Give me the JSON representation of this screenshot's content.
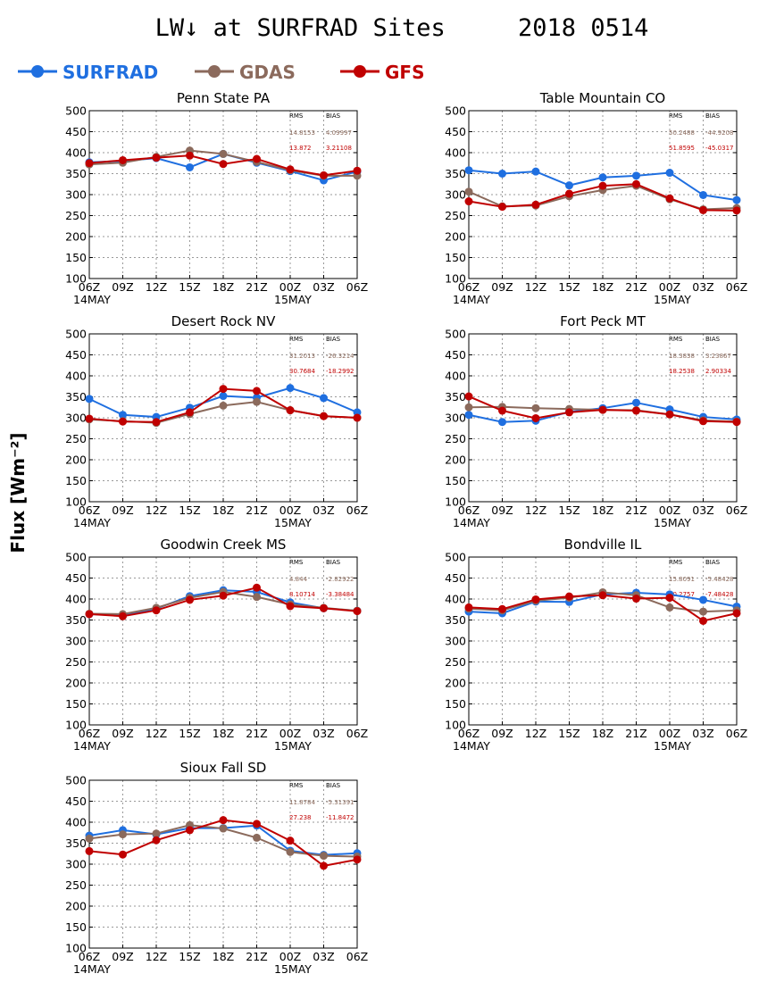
{
  "title": "LW↓ at SURFRAD Sites     2018 0514",
  "ylabel": "Flux [Wm⁻²]",
  "legend": [
    {
      "name": "SURFRAD",
      "color": "#1f6fe0"
    },
    {
      "name": "GDAS",
      "color": "#8b6a5c"
    },
    {
      "name": "GFS",
      "color": "#c00000"
    }
  ],
  "stats_headers": [
    "RMS",
    "BIAS"
  ],
  "chart_data": [
    {
      "type": "line",
      "title": "Penn State PA",
      "categories": [
        "06Z",
        "09Z",
        "12Z",
        "15Z",
        "18Z",
        "21Z",
        "00Z",
        "03Z",
        "06Z"
      ],
      "date_labels": [
        {
          "at": "06Z",
          "text": "14MAY"
        },
        {
          "at": "00Z",
          "text": "15MAY"
        }
      ],
      "ylim": [
        100,
        500
      ],
      "yticks": [
        100,
        150,
        200,
        250,
        300,
        350,
        400,
        450,
        500
      ],
      "grid": true,
      "series": [
        {
          "name": "SURFRAD",
          "values": [
            377,
            380,
            387,
            365,
            397,
            376,
            356,
            334,
            355
          ]
        },
        {
          "name": "GDAS",
          "values": [
            372,
            376,
            390,
            405,
            397,
            378,
            358,
            345,
            345
          ]
        },
        {
          "name": "GFS",
          "values": [
            375,
            382,
            388,
            393,
            373,
            385,
            360,
            346,
            357
          ]
        }
      ],
      "stats": {
        "GDAS": {
          "rms": "14.8153",
          "bias": "4.09997"
        },
        "GFS": {
          "rms": "13.872",
          "bias": "3.21108"
        }
      }
    },
    {
      "type": "line",
      "title": "Table Mountain CO",
      "categories": [
        "06Z",
        "09Z",
        "12Z",
        "15Z",
        "18Z",
        "21Z",
        "00Z",
        "03Z",
        "06Z"
      ],
      "date_labels": [
        {
          "at": "06Z",
          "text": "14MAY"
        },
        {
          "at": "00Z",
          "text": "15MAY"
        }
      ],
      "ylim": [
        100,
        500
      ],
      "yticks": [
        100,
        150,
        200,
        250,
        300,
        350,
        400,
        450,
        500
      ],
      "grid": true,
      "series": [
        {
          "name": "SURFRAD",
          "values": [
            358,
            350,
            355,
            322,
            341,
            345,
            352,
            299,
            287
          ]
        },
        {
          "name": "GDAS",
          "values": [
            307,
            272,
            274,
            296,
            311,
            321,
            289,
            265,
            268
          ]
        },
        {
          "name": "GFS",
          "values": [
            284,
            271,
            276,
            302,
            321,
            325,
            291,
            263,
            262
          ]
        }
      ],
      "stats": {
        "GDAS": {
          "rms": "50.2488",
          "bias": "-44.9208"
        },
        "GFS": {
          "rms": "51.8595",
          "bias": "-45.0317"
        }
      }
    },
    {
      "type": "line",
      "title": "Desert Rock NV",
      "categories": [
        "06Z",
        "09Z",
        "12Z",
        "15Z",
        "18Z",
        "21Z",
        "00Z",
        "03Z",
        "06Z"
      ],
      "date_labels": [
        {
          "at": "06Z",
          "text": "14MAY"
        },
        {
          "at": "00Z",
          "text": "15MAY"
        }
      ],
      "ylim": [
        100,
        500
      ],
      "yticks": [
        100,
        150,
        200,
        250,
        300,
        350,
        400,
        450,
        500
      ],
      "grid": true,
      "series": [
        {
          "name": "SURFRAD",
          "values": [
            345,
            307,
            302,
            324,
            352,
            348,
            371,
            347,
            313
          ]
        },
        {
          "name": "GDAS",
          "values": [
            296,
            292,
            288,
            309,
            329,
            338,
            318,
            304,
            300
          ]
        },
        {
          "name": "GFS",
          "values": [
            298,
            291,
            290,
            313,
            369,
            364,
            318,
            304,
            300
          ]
        }
      ],
      "stats": {
        "GDAS": {
          "rms": "31.2013",
          "bias": "-26.3214"
        },
        "GFS": {
          "rms": "30.7684",
          "bias": "-18.2992"
        }
      }
    },
    {
      "type": "line",
      "title": "Fort Peck MT",
      "categories": [
        "06Z",
        "09Z",
        "12Z",
        "15Z",
        "18Z",
        "21Z",
        "00Z",
        "03Z",
        "06Z"
      ],
      "date_labels": [
        {
          "at": "06Z",
          "text": "14MAY"
        },
        {
          "at": "00Z",
          "text": "15MAY"
        }
      ],
      "ylim": [
        100,
        500
      ],
      "yticks": [
        100,
        150,
        200,
        250,
        300,
        350,
        400,
        450,
        500
      ],
      "grid": true,
      "series": [
        {
          "name": "SURFRAD",
          "values": [
            307,
            290,
            293,
            314,
            323,
            336,
            320,
            302,
            296
          ]
        },
        {
          "name": "GDAS",
          "values": [
            325,
            326,
            323,
            321,
            319,
            318,
            308,
            294,
            291
          ]
        },
        {
          "name": "GFS",
          "values": [
            351,
            317,
            299,
            313,
            319,
            317,
            308,
            292,
            290
          ]
        }
      ],
      "stats": {
        "GDAS": {
          "rms": "18.3838",
          "bias": "3.23867"
        },
        "GFS": {
          "rms": "18.2538",
          "bias": "2.90334"
        }
      }
    },
    {
      "type": "line",
      "title": "Goodwin Creek MS",
      "categories": [
        "06Z",
        "09Z",
        "12Z",
        "15Z",
        "18Z",
        "21Z",
        "00Z",
        "03Z",
        "06Z"
      ],
      "date_labels": [
        {
          "at": "06Z",
          "text": "14MAY"
        },
        {
          "at": "00Z",
          "text": "15MAY"
        }
      ],
      "ylim": [
        100,
        500
      ],
      "yticks": [
        100,
        150,
        200,
        250,
        300,
        350,
        400,
        450,
        500
      ],
      "grid": true,
      "series": [
        {
          "name": "SURFRAD",
          "values": [
            364,
            361,
            377,
            407,
            421,
            417,
            392,
            378,
            372
          ]
        },
        {
          "name": "GDAS",
          "values": [
            365,
            364,
            379,
            403,
            417,
            405,
            387,
            379,
            372
          ]
        },
        {
          "name": "GFS",
          "values": [
            364,
            359,
            373,
            398,
            408,
            427,
            383,
            378,
            371
          ]
        }
      ],
      "stats": {
        "GDAS": {
          "rms": "4.844",
          "bias": "-2.82922"
        },
        "GFS": {
          "rms": "8.10714",
          "bias": "-3.38484"
        }
      }
    },
    {
      "type": "line",
      "title": "Bondville IL",
      "categories": [
        "06Z",
        "09Z",
        "12Z",
        "15Z",
        "18Z",
        "21Z",
        "00Z",
        "03Z",
        "06Z"
      ],
      "date_labels": [
        {
          "at": "06Z",
          "text": "14MAY"
        },
        {
          "at": "00Z",
          "text": "15MAY"
        }
      ],
      "ylim": [
        100,
        500
      ],
      "yticks": [
        100,
        150,
        200,
        250,
        300,
        350,
        400,
        450,
        500
      ],
      "grid": true,
      "series": [
        {
          "name": "SURFRAD",
          "values": [
            370,
            366,
            394,
            393,
            411,
            415,
            411,
            398,
            382
          ]
        },
        {
          "name": "GDAS",
          "values": [
            377,
            373,
            396,
            403,
            416,
            409,
            380,
            370,
            373
          ]
        },
        {
          "name": "GFS",
          "values": [
            380,
            376,
            399,
            406,
            409,
            401,
            403,
            348,
            366
          ]
        }
      ],
      "stats": {
        "GDAS": {
          "rms": "15.8091",
          "bias": "-5.48428"
        },
        "GFS": {
          "rms": "10.2757",
          "bias": "-7.48428"
        }
      }
    },
    {
      "type": "line",
      "title": "Sioux Fall SD",
      "categories": [
        "06Z",
        "09Z",
        "12Z",
        "15Z",
        "18Z",
        "21Z",
        "00Z",
        "03Z",
        "06Z"
      ],
      "date_labels": [
        {
          "at": "06Z",
          "text": "14MAY"
        },
        {
          "at": "00Z",
          "text": "15MAY"
        }
      ],
      "ylim": [
        100,
        500
      ],
      "yticks": [
        100,
        150,
        200,
        250,
        300,
        350,
        400,
        450,
        500
      ],
      "grid": true,
      "series": [
        {
          "name": "SURFRAD",
          "values": [
            368,
            381,
            371,
            386,
            386,
            392,
            332,
            322,
            326
          ]
        },
        {
          "name": "GDAS",
          "values": [
            361,
            371,
            373,
            393,
            385,
            363,
            329,
            320,
            318
          ]
        },
        {
          "name": "GFS",
          "values": [
            331,
            323,
            357,
            381,
            405,
            396,
            356,
            296,
            311
          ]
        }
      ],
      "stats": {
        "GDAS": {
          "rms": "11.8784",
          "bias": "-5.31391"
        },
        "GFS": {
          "rms": "27.238",
          "bias": "-11.8472"
        }
      }
    }
  ]
}
